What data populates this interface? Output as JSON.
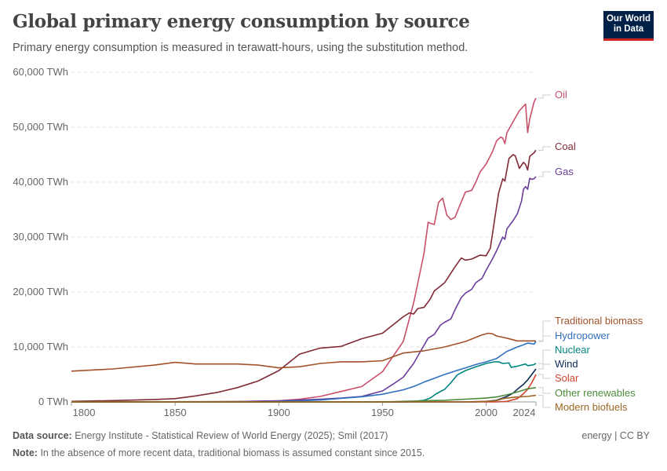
{
  "title": "Global primary energy consumption by source",
  "subtitle": "Primary energy consumption is measured in terawatt-hours, using the substitution method.",
  "logo": "Our World in Data",
  "footer": {
    "source_label": "Data source:",
    "source": "Energy Institute - Statistical Review of World Energy (2025); Smil (2017)",
    "note_label": "Note:",
    "note": "In the absence of more recent data, traditional biomass is assumed constant since 2015.",
    "license": "energy | CC BY"
  },
  "chart_data": {
    "type": "line",
    "title": "",
    "xlabel": "",
    "ylabel": "",
    "xlim": [
      1800,
      2024
    ],
    "ylim": [
      0,
      60000
    ],
    "grid": "horizontal dashed",
    "legend": "right, inline labels",
    "x_ticks": [
      "1800",
      "1850",
      "1900",
      "1950",
      "2000",
      "2024"
    ],
    "y_ticks": [
      "0 TWh",
      "10,000 TWh",
      "20,000 TWh",
      "30,000 TWh",
      "40,000 TWh",
      "50,000 TWh",
      "60,000 TWh"
    ],
    "series": [
      {
        "name": "Oil",
        "color": "#c8506a",
        "points": [
          [
            1800,
            0
          ],
          [
            1860,
            0
          ],
          [
            1880,
            50
          ],
          [
            1900,
            200
          ],
          [
            1910,
            500
          ],
          [
            1920,
            1000
          ],
          [
            1930,
            1900
          ],
          [
            1940,
            2800
          ],
          [
            1950,
            5500
          ],
          [
            1960,
            11000
          ],
          [
            1965,
            18000
          ],
          [
            1970,
            27000
          ],
          [
            1972,
            32700
          ],
          [
            1973,
            32500
          ],
          [
            1975,
            32300
          ],
          [
            1977,
            36300
          ],
          [
            1979,
            37100
          ],
          [
            1981,
            34000
          ],
          [
            1983,
            33200
          ],
          [
            1985,
            33600
          ],
          [
            1987,
            35500
          ],
          [
            1990,
            38200
          ],
          [
            1993,
            38500
          ],
          [
            1995,
            40000
          ],
          [
            1997,
            41800
          ],
          [
            2000,
            43300
          ],
          [
            2003,
            45500
          ],
          [
            2005,
            47500
          ],
          [
            2007,
            48200
          ],
          [
            2008,
            48000
          ],
          [
            2009,
            47000
          ],
          [
            2010,
            49000
          ],
          [
            2013,
            51000
          ],
          [
            2016,
            53000
          ],
          [
            2019,
            54200
          ],
          [
            2020,
            49000
          ],
          [
            2021,
            51500
          ],
          [
            2023,
            54500
          ],
          [
            2024,
            55300
          ]
        ]
      },
      {
        "name": "Coal",
        "color": "#7f2a35",
        "points": [
          [
            1800,
            100
          ],
          [
            1820,
            250
          ],
          [
            1840,
            450
          ],
          [
            1850,
            600
          ],
          [
            1860,
            1100
          ],
          [
            1870,
            1700
          ],
          [
            1880,
            2600
          ],
          [
            1890,
            3800
          ],
          [
            1900,
            5700
          ],
          [
            1910,
            8700
          ],
          [
            1920,
            9800
          ],
          [
            1930,
            10100
          ],
          [
            1940,
            11500
          ],
          [
            1950,
            12500
          ],
          [
            1955,
            14000
          ],
          [
            1960,
            15500
          ],
          [
            1963,
            16200
          ],
          [
            1965,
            16000
          ],
          [
            1967,
            17000
          ],
          [
            1970,
            17200
          ],
          [
            1973,
            18700
          ],
          [
            1975,
            20200
          ],
          [
            1980,
            21700
          ],
          [
            1985,
            24600
          ],
          [
            1988,
            26200
          ],
          [
            1990,
            25800
          ],
          [
            1993,
            26000
          ],
          [
            1997,
            26700
          ],
          [
            2000,
            26600
          ],
          [
            2002,
            28000
          ],
          [
            2004,
            33000
          ],
          [
            2006,
            38000
          ],
          [
            2008,
            40600
          ],
          [
            2009,
            40200
          ],
          [
            2011,
            44300
          ],
          [
            2013,
            45000
          ],
          [
            2014,
            44800
          ],
          [
            2016,
            42500
          ],
          [
            2018,
            43600
          ],
          [
            2019,
            43200
          ],
          [
            2020,
            42200
          ],
          [
            2021,
            44700
          ],
          [
            2023,
            45300
          ],
          [
            2024,
            45800
          ]
        ]
      },
      {
        "name": "Gas",
        "color": "#6a3d9a",
        "points": [
          [
            1800,
            0
          ],
          [
            1880,
            50
          ],
          [
            1900,
            200
          ],
          [
            1920,
            500
          ],
          [
            1930,
            700
          ],
          [
            1940,
            1000
          ],
          [
            1950,
            2000
          ],
          [
            1955,
            3200
          ],
          [
            1960,
            4500
          ],
          [
            1965,
            7000
          ],
          [
            1968,
            9000
          ],
          [
            1970,
            10300
          ],
          [
            1972,
            11600
          ],
          [
            1975,
            12300
          ],
          [
            1978,
            14000
          ],
          [
            1980,
            14500
          ],
          [
            1983,
            15100
          ],
          [
            1985,
            16800
          ],
          [
            1988,
            19000
          ],
          [
            1990,
            19800
          ],
          [
            1993,
            20500
          ],
          [
            1995,
            21700
          ],
          [
            1998,
            22500
          ],
          [
            2000,
            24000
          ],
          [
            2003,
            26000
          ],
          [
            2005,
            27500
          ],
          [
            2008,
            30000
          ],
          [
            2009,
            29600
          ],
          [
            2010,
            31500
          ],
          [
            2013,
            33000
          ],
          [
            2015,
            34200
          ],
          [
            2017,
            36500
          ],
          [
            2018,
            38700
          ],
          [
            2019,
            39200
          ],
          [
            2020,
            38700
          ],
          [
            2021,
            40700
          ],
          [
            2022,
            40500
          ],
          [
            2023,
            40600
          ],
          [
            2024,
            41000
          ]
        ]
      },
      {
        "name": "Traditional biomass",
        "color": "#a2522a",
        "points": [
          [
            1800,
            5600
          ],
          [
            1820,
            6000
          ],
          [
            1840,
            6700
          ],
          [
            1850,
            7200
          ],
          [
            1860,
            6900
          ],
          [
            1880,
            6900
          ],
          [
            1890,
            6700
          ],
          [
            1900,
            6200
          ],
          [
            1910,
            6400
          ],
          [
            1920,
            7000
          ],
          [
            1930,
            7300
          ],
          [
            1940,
            7300
          ],
          [
            1950,
            7500
          ],
          [
            1960,
            8900
          ],
          [
            1970,
            9300
          ],
          [
            1980,
            10000
          ],
          [
            1990,
            11000
          ],
          [
            1998,
            12200
          ],
          [
            2001,
            12500
          ],
          [
            2003,
            12400
          ],
          [
            2005,
            12000
          ],
          [
            2010,
            11600
          ],
          [
            2015,
            11100
          ],
          [
            2024,
            11100
          ]
        ]
      },
      {
        "name": "Hydropower",
        "color": "#2f6fbd",
        "points": [
          [
            1800,
            0
          ],
          [
            1890,
            0
          ],
          [
            1900,
            100
          ],
          [
            1910,
            200
          ],
          [
            1920,
            350
          ],
          [
            1930,
            650
          ],
          [
            1940,
            950
          ],
          [
            1950,
            1400
          ],
          [
            1955,
            1800
          ],
          [
            1960,
            2200
          ],
          [
            1965,
            2800
          ],
          [
            1970,
            3600
          ],
          [
            1975,
            4300
          ],
          [
            1980,
            5000
          ],
          [
            1985,
            5600
          ],
          [
            1990,
            6200
          ],
          [
            1995,
            6800
          ],
          [
            2000,
            7300
          ],
          [
            2005,
            7900
          ],
          [
            2010,
            9200
          ],
          [
            2015,
            10000
          ],
          [
            2018,
            10400
          ],
          [
            2020,
            10700
          ],
          [
            2022,
            10600
          ],
          [
            2023,
            10500
          ],
          [
            2024,
            11000
          ]
        ]
      },
      {
        "name": "Nuclear",
        "color": "#00857e",
        "points": [
          [
            1800,
            0
          ],
          [
            1960,
            0
          ],
          [
            1965,
            100
          ],
          [
            1970,
            300
          ],
          [
            1973,
            700
          ],
          [
            1976,
            1500
          ],
          [
            1980,
            2300
          ],
          [
            1983,
            3500
          ],
          [
            1986,
            4900
          ],
          [
            1990,
            5700
          ],
          [
            1995,
            6400
          ],
          [
            2000,
            7000
          ],
          [
            2004,
            7300
          ],
          [
            2006,
            7300
          ],
          [
            2008,
            7000
          ],
          [
            2011,
            7100
          ],
          [
            2012,
            6300
          ],
          [
            2015,
            6500
          ],
          [
            2018,
            6800
          ],
          [
            2019,
            6900
          ],
          [
            2020,
            6600
          ],
          [
            2022,
            6700
          ],
          [
            2023,
            6800
          ],
          [
            2024,
            7000
          ]
        ]
      },
      {
        "name": "Wind",
        "color": "#0b2a55",
        "points": [
          [
            1800,
            0
          ],
          [
            1995,
            0
          ],
          [
            2000,
            100
          ],
          [
            2005,
            300
          ],
          [
            2010,
            1000
          ],
          [
            2013,
            1600
          ],
          [
            2015,
            2300
          ],
          [
            2018,
            3200
          ],
          [
            2020,
            4000
          ],
          [
            2022,
            5000
          ],
          [
            2024,
            6000
          ]
        ]
      },
      {
        "name": "Solar",
        "color": "#d0452f",
        "points": [
          [
            1800,
            0
          ],
          [
            2005,
            0
          ],
          [
            2010,
            100
          ],
          [
            2013,
            400
          ],
          [
            2015,
            600
          ],
          [
            2018,
            1500
          ],
          [
            2020,
            2300
          ],
          [
            2022,
            3500
          ],
          [
            2024,
            5000
          ]
        ]
      },
      {
        "name": "Other renewables",
        "color": "#4c8a3a",
        "points": [
          [
            1800,
            0
          ],
          [
            1950,
            0
          ],
          [
            1960,
            100
          ],
          [
            1970,
            200
          ],
          [
            1980,
            300
          ],
          [
            1990,
            500
          ],
          [
            2000,
            700
          ],
          [
            2005,
            900
          ],
          [
            2010,
            1300
          ],
          [
            2015,
            1800
          ],
          [
            2020,
            2400
          ],
          [
            2024,
            2600
          ]
        ]
      },
      {
        "name": "Modern biofuels",
        "color": "#9a6524",
        "points": [
          [
            1800,
            0
          ],
          [
            1990,
            0
          ],
          [
            1995,
            50
          ],
          [
            2000,
            100
          ],
          [
            2005,
            250
          ],
          [
            2008,
            600
          ],
          [
            2010,
            700
          ],
          [
            2015,
            900
          ],
          [
            2020,
            1000
          ],
          [
            2024,
            1200
          ]
        ]
      }
    ]
  }
}
